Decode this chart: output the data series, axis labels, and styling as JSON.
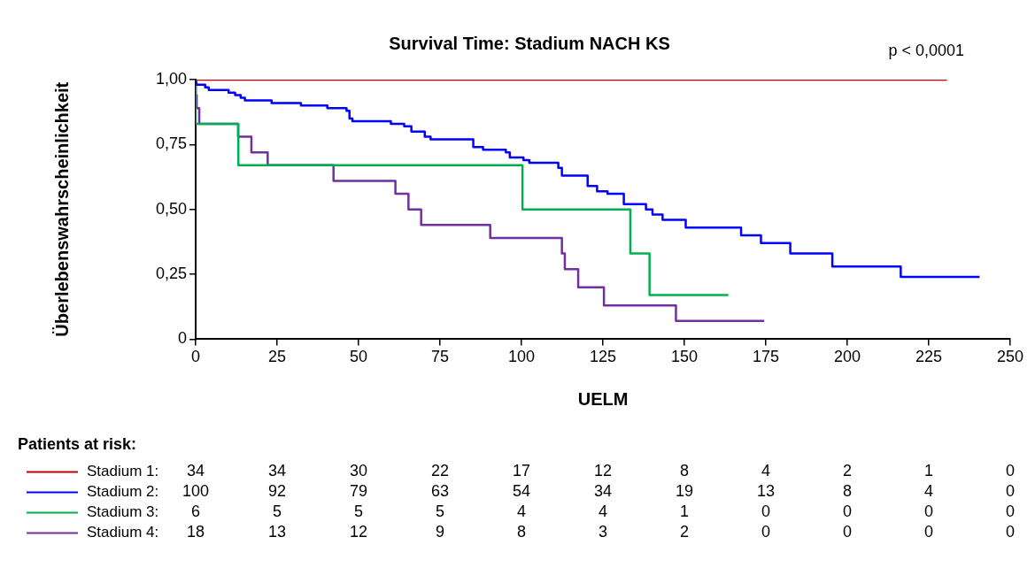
{
  "chart_data": {
    "type": "step",
    "title": "Survival Time: Stadium NACH KS",
    "xlabel": "UELM",
    "ylabel": "Überlebenswahrscheinlichkeit",
    "xlim": [
      0,
      250
    ],
    "xticks": [
      0,
      25,
      50,
      75,
      100,
      125,
      150,
      175,
      200,
      225,
      250
    ],
    "ylim": [
      0,
      1
    ],
    "yticks": [
      {
        "value": 0,
        "label": "0"
      },
      {
        "value": 0.25,
        "label": "0,25"
      },
      {
        "value": 0.5,
        "label": "0,50"
      },
      {
        "value": 0.75,
        "label": "0,75"
      },
      {
        "value": 1,
        "label": "1,00"
      }
    ],
    "grid": false,
    "legend": "bottom",
    "marker": "none",
    "line_style": "solid",
    "series": [
      {
        "name": "Stadium 1:",
        "color": "#c00000",
        "x": [
          0,
          230.6
        ],
        "values": [
          1,
          1
        ]
      },
      {
        "name": "Stadium 2:",
        "color": "#0000ff",
        "x": [
          0,
          0.2,
          2.9,
          4,
          10.1,
          12.1,
          13.8,
          15.1,
          23.3,
          32.3,
          40.4,
          46.3,
          47.2,
          48.1,
          59.9,
          64,
          66.2,
          70.3,
          72.1,
          85.2,
          88.2,
          95.2,
          96.4,
          100.6,
          102.4,
          111.3,
          112.4,
          120.3,
          123.2,
          126.4,
          131.4,
          138.2,
          140.2,
          143.3,
          150.4,
          167.4,
          173.5,
          182.5,
          195.4,
          216.4,
          219.4,
          240.6
        ],
        "values": [
          1,
          0.99,
          0.98,
          0.97,
          0.96,
          0.95,
          0.94,
          0.93,
          0.92,
          0.91,
          0.9,
          0.89,
          0.88,
          0.85,
          0.84,
          0.83,
          0.82,
          0.8,
          0.78,
          0.77,
          0.74,
          0.73,
          0.72,
          0.7,
          0.69,
          0.68,
          0.66,
          0.63,
          0.59,
          0.57,
          0.56,
          0.52,
          0.5,
          0.48,
          0.46,
          0.43,
          0.4,
          0.37,
          0.33,
          0.28,
          0.24,
          0.24
        ]
      },
      {
        "name": "Stadium 3:",
        "color": "#00b050",
        "x": [
          0,
          13.1,
          100.3,
          133.4,
          139.3,
          148.4,
          163.5
        ],
        "values": [
          1,
          0.83,
          0.67,
          0.5,
          0.33,
          0.17,
          0.17
        ]
      },
      {
        "name": "Stadium 4:",
        "color": "#7030a0",
        "x": [
          0,
          0.3,
          1.1,
          13,
          17.1,
          22.1,
          42.3,
          61.3,
          65.3,
          69.2,
          90.4,
          112.4,
          113.3,
          117.4,
          125.3,
          147.4,
          167.4,
          174.5
        ],
        "values": [
          1,
          0.94,
          0.89,
          0.83,
          0.78,
          0.72,
          0.67,
          0.61,
          0.56,
          0.5,
          0.44,
          0.39,
          0.33,
          0.27,
          0.2,
          0.13,
          0.07,
          0.07
        ]
      }
    ],
    "annotations": [
      "p < 0,0001",
      "Patients at risk:",
      "34 34 30 22 17 12 8 4 2 1 0",
      "100 92 79 63 54 34 19 13 8 4 0",
      "6 5 5 5 4 4 1 0 0 0 0",
      "18 13 12 9 8 3 2 0 0 0 0"
    ]
  }
}
